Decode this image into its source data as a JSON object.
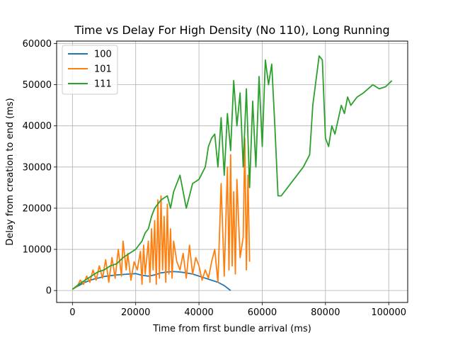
{
  "chart_data": {
    "type": "line",
    "title": "Time vs Delay For High Density (No 110), Long Running",
    "xlabel": "Time from first bundle arrival (ms)",
    "ylabel": "Delay from creation to end (ms)",
    "xlim": [
      -5000,
      106000
    ],
    "ylim": [
      -2900,
      60600
    ],
    "xticks": [
      0,
      20000,
      40000,
      60000,
      80000,
      100000
    ],
    "yticks": [
      0,
      10000,
      20000,
      30000,
      40000,
      50000,
      60000
    ],
    "grid": true,
    "legend_position": "top-left",
    "series": [
      {
        "name": "100",
        "color": "#1f77b4",
        "x": [
          0,
          2000,
          4000,
          6000,
          8000,
          10000,
          12000,
          14000,
          16000,
          18000,
          20000,
          22000,
          24000,
          26000,
          28000,
          30000,
          32000,
          34000,
          36000,
          38000,
          40000,
          42000,
          44000,
          46000,
          48000,
          49000,
          50000
        ],
        "y": [
          300,
          1200,
          2000,
          2600,
          3000,
          3400,
          3600,
          3800,
          3900,
          4000,
          4100,
          3700,
          3500,
          3800,
          4300,
          4500,
          4600,
          4500,
          4300,
          4000,
          3500,
          3000,
          2500,
          2000,
          1200,
          600,
          0
        ]
      },
      {
        "name": "101",
        "color": "#ff7f0e",
        "x": [
          0,
          1500,
          2500,
          3500,
          4500,
          5500,
          6500,
          7500,
          8500,
          9500,
          10500,
          11500,
          12500,
          13500,
          14500,
          15500,
          16000,
          17000,
          17500,
          18500,
          19500,
          20500,
          21500,
          22000,
          22500,
          23000,
          23500,
          24000,
          24500,
          25000,
          25500,
          26000,
          26500,
          27000,
          27500,
          28000,
          28500,
          29000,
          29500,
          30000,
          30500,
          31000,
          31500,
          32000,
          33000,
          34000,
          35000,
          36000,
          37000,
          38000,
          39000,
          40000,
          41000,
          42000,
          43000,
          44000,
          45000,
          46000,
          47000,
          48000,
          49000,
          49500,
          50000,
          50500,
          51000,
          51500,
          52000,
          53000,
          54000,
          54500,
          55000,
          55500,
          56000
        ],
        "y": [
          300,
          1000,
          2500,
          1500,
          3500,
          2000,
          5000,
          2500,
          6000,
          3000,
          7500,
          2000,
          8000,
          3000,
          10000,
          3500,
          12000,
          5000,
          9000,
          2500,
          7000,
          5000,
          9500,
          1500,
          11000,
          4000,
          8000,
          12000,
          2000,
          15000,
          5000,
          17000,
          1500,
          22000,
          3000,
          23000,
          5000,
          18000,
          2000,
          21000,
          4000,
          15000,
          3000,
          12000,
          7000,
          5000,
          9000,
          3000,
          11000,
          4000,
          8000,
          6000,
          2500,
          5000,
          3000,
          7000,
          10000,
          2000,
          26000,
          3500,
          30000,
          5000,
          33000,
          6000,
          24000,
          4000,
          27000,
          8000,
          13000,
          37000,
          5000,
          28000,
          7000
        ]
      },
      {
        "name": "111",
        "color": "#2ca02c",
        "x": [
          0,
          2000,
          4000,
          6000,
          8000,
          10000,
          12000,
          14000,
          16000,
          18000,
          20000,
          22000,
          23000,
          24000,
          25000,
          26000,
          27000,
          28000,
          29000,
          30000,
          31000,
          32000,
          34000,
          36000,
          38000,
          40000,
          42000,
          43000,
          44000,
          45000,
          46000,
          47000,
          48000,
          49000,
          50000,
          51000,
          52000,
          53000,
          54000,
          55000,
          56000,
          57000,
          58000,
          59000,
          60000,
          61000,
          62000,
          63000,
          64000,
          65000,
          66000,
          68000,
          70000,
          73000,
          75000,
          76000,
          77000,
          78000,
          79000,
          80000,
          81000,
          82000,
          83000,
          85000,
          86000,
          87000,
          88000,
          90000,
          92000,
          95000,
          97000,
          99000,
          101000
        ],
        "y": [
          300,
          1500,
          2500,
          3500,
          4500,
          5000,
          6000,
          6500,
          8000,
          9000,
          10000,
          12000,
          14000,
          15000,
          18000,
          20000,
          21000,
          22000,
          22500,
          23000,
          20000,
          24000,
          28000,
          20000,
          26000,
          27000,
          30000,
          35000,
          37000,
          38000,
          30000,
          42000,
          28000,
          43000,
          34000,
          51000,
          40000,
          48000,
          30000,
          49000,
          25000,
          46000,
          30000,
          52000,
          35000,
          56000,
          50000,
          55000,
          40000,
          23000,
          23000,
          25000,
          27000,
          30000,
          33000,
          45000,
          51000,
          57000,
          56000,
          37000,
          35000,
          40000,
          38000,
          45000,
          43000,
          47000,
          45000,
          47000,
          48000,
          50000,
          49000,
          49500,
          51000
        ]
      }
    ]
  }
}
